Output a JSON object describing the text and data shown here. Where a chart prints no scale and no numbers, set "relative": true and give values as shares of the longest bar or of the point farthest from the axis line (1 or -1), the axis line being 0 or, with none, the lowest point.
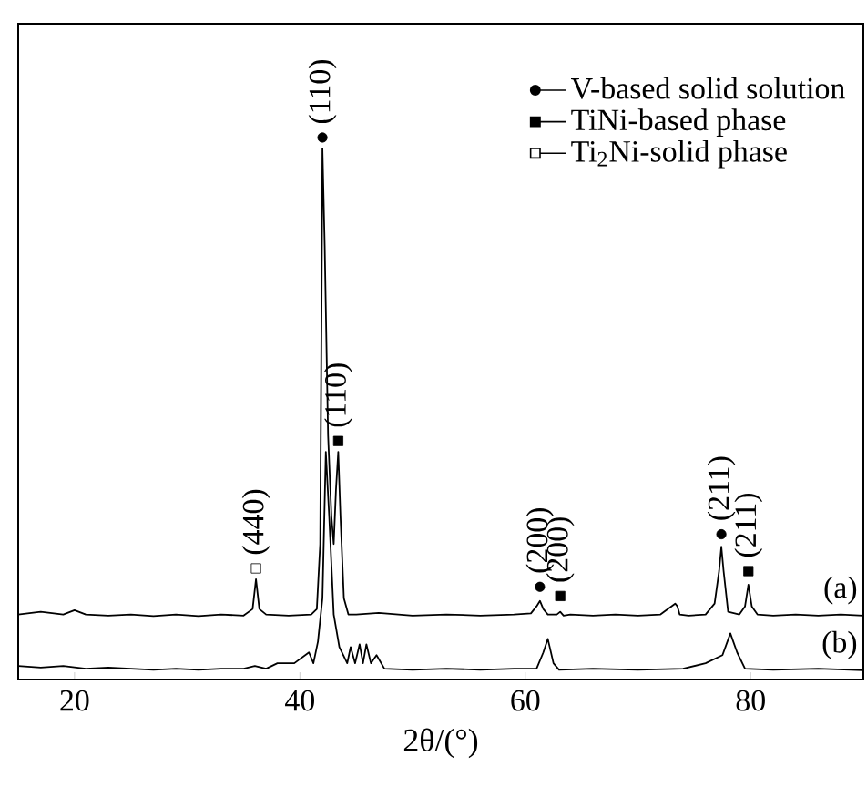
{
  "chart_data": {
    "type": "line",
    "relative": true,
    "xlabel": "2θ/(°)",
    "xlim": [
      15,
      90
    ],
    "xticks": [
      20,
      40,
      60,
      80
    ],
    "legend": "top right",
    "grid": false,
    "series": [
      {
        "name": "(a)",
        "color": "#000000",
        "x": [
          15,
          17,
          19,
          20,
          21,
          23,
          25,
          27,
          29,
          31,
          33,
          35,
          35.8,
          36.1,
          36.4,
          37,
          39,
          41,
          41.5,
          41.8,
          42.0,
          42.2,
          42.5,
          42.8,
          43.0,
          43.2,
          43.4,
          43.6,
          43.9,
          44.3,
          45,
          47,
          50,
          53,
          56,
          59,
          60.5,
          61.0,
          61.3,
          61.6,
          62.0,
          62.8,
          63.1,
          63.4,
          64,
          66,
          68,
          70,
          72,
          73.3,
          73.5,
          73.7,
          74.5,
          76,
          76.8,
          77.2,
          77.4,
          77.6,
          78.0,
          79.0,
          79.5,
          79.8,
          80.1,
          80.6,
          82,
          84,
          86,
          88,
          90
        ],
        "values": [
          0.12,
          0.125,
          0.12,
          0.128,
          0.12,
          0.118,
          0.12,
          0.117,
          0.12,
          0.117,
          0.12,
          0.118,
          0.13,
          0.185,
          0.13,
          0.12,
          0.118,
          0.12,
          0.13,
          0.25,
          0.98,
          0.8,
          0.45,
          0.3,
          0.25,
          0.35,
          0.42,
          0.3,
          0.15,
          0.12,
          0.12,
          0.123,
          0.118,
          0.12,
          0.118,
          0.12,
          0.122,
          0.135,
          0.145,
          0.13,
          0.12,
          0.12,
          0.125,
          0.118,
          0.12,
          0.118,
          0.12,
          0.118,
          0.12,
          0.14,
          0.135,
          0.12,
          0.118,
          0.12,
          0.14,
          0.2,
          0.245,
          0.2,
          0.125,
          0.12,
          0.135,
          0.175,
          0.135,
          0.12,
          0.118,
          0.12,
          0.118,
          0.12,
          0.118
        ]
      },
      {
        "name": "(b)",
        "color": "#000000",
        "x": [
          15,
          17,
          19,
          21,
          23,
          25,
          27,
          29,
          31,
          33,
          35,
          36,
          37,
          38,
          39.5,
          40.8,
          41.2,
          41.6,
          42.0,
          42.3,
          42.6,
          43.0,
          43.5,
          44.2,
          44.5,
          44.9,
          45.3,
          45.6,
          45.9,
          46.3,
          46.8,
          47.5,
          50,
          53,
          56,
          59,
          61.0,
          61.6,
          62.0,
          62.5,
          63,
          66,
          70,
          74,
          76,
          77.5,
          78.2,
          78.8,
          79.5,
          82,
          86,
          90
        ],
        "values": [
          0.025,
          0.022,
          0.025,
          0.02,
          0.022,
          0.02,
          0.018,
          0.02,
          0.018,
          0.02,
          0.02,
          0.025,
          0.02,
          0.03,
          0.03,
          0.05,
          0.03,
          0.07,
          0.15,
          0.42,
          0.3,
          0.12,
          0.06,
          0.03,
          0.06,
          0.03,
          0.065,
          0.03,
          0.065,
          0.03,
          0.045,
          0.02,
          0.018,
          0.02,
          0.018,
          0.02,
          0.02,
          0.05,
          0.075,
          0.03,
          0.018,
          0.02,
          0.018,
          0.02,
          0.03,
          0.045,
          0.085,
          0.05,
          0.02,
          0.018,
          0.02,
          0.017
        ]
      },
      {
        "name": "V-based solid solution",
        "type": "scatter",
        "marker": "circle",
        "color": "#000000",
        "x": [
          42.0,
          61.3,
          77.4
        ],
        "values": [
          1.0,
          0.171,
          0.268
        ]
      },
      {
        "name": "TiNi-based phase",
        "type": "scatter",
        "marker": "square",
        "color": "#000000",
        "x": [
          43.4,
          63.1,
          79.8
        ],
        "values": [
          0.44,
          0.154,
          0.2
        ]
      },
      {
        "name": "Ti$_{2}$Ni-solid phase",
        "type": "scatter",
        "marker": "square",
        "color": "#ffffff",
        "x": [
          36.1
        ],
        "values": [
          0.205
        ]
      }
    ],
    "annotations": [
      {
        "text": "(110)",
        "x": 42.0,
        "y": 1.0
      },
      {
        "text": "(110)",
        "x": 43.4,
        "y": 0.44
      },
      {
        "text": "(440)",
        "x": 36.1,
        "y": 0.205
      },
      {
        "text": "(200)",
        "x": 61.3,
        "y": 0.171
      },
      {
        "text": "(200)",
        "x": 63.1,
        "y": 0.154
      },
      {
        "text": "(211)",
        "x": 77.4,
        "y": 0.268
      },
      {
        "text": "(211)",
        "x": 79.8,
        "y": 0.2
      }
    ]
  }
}
